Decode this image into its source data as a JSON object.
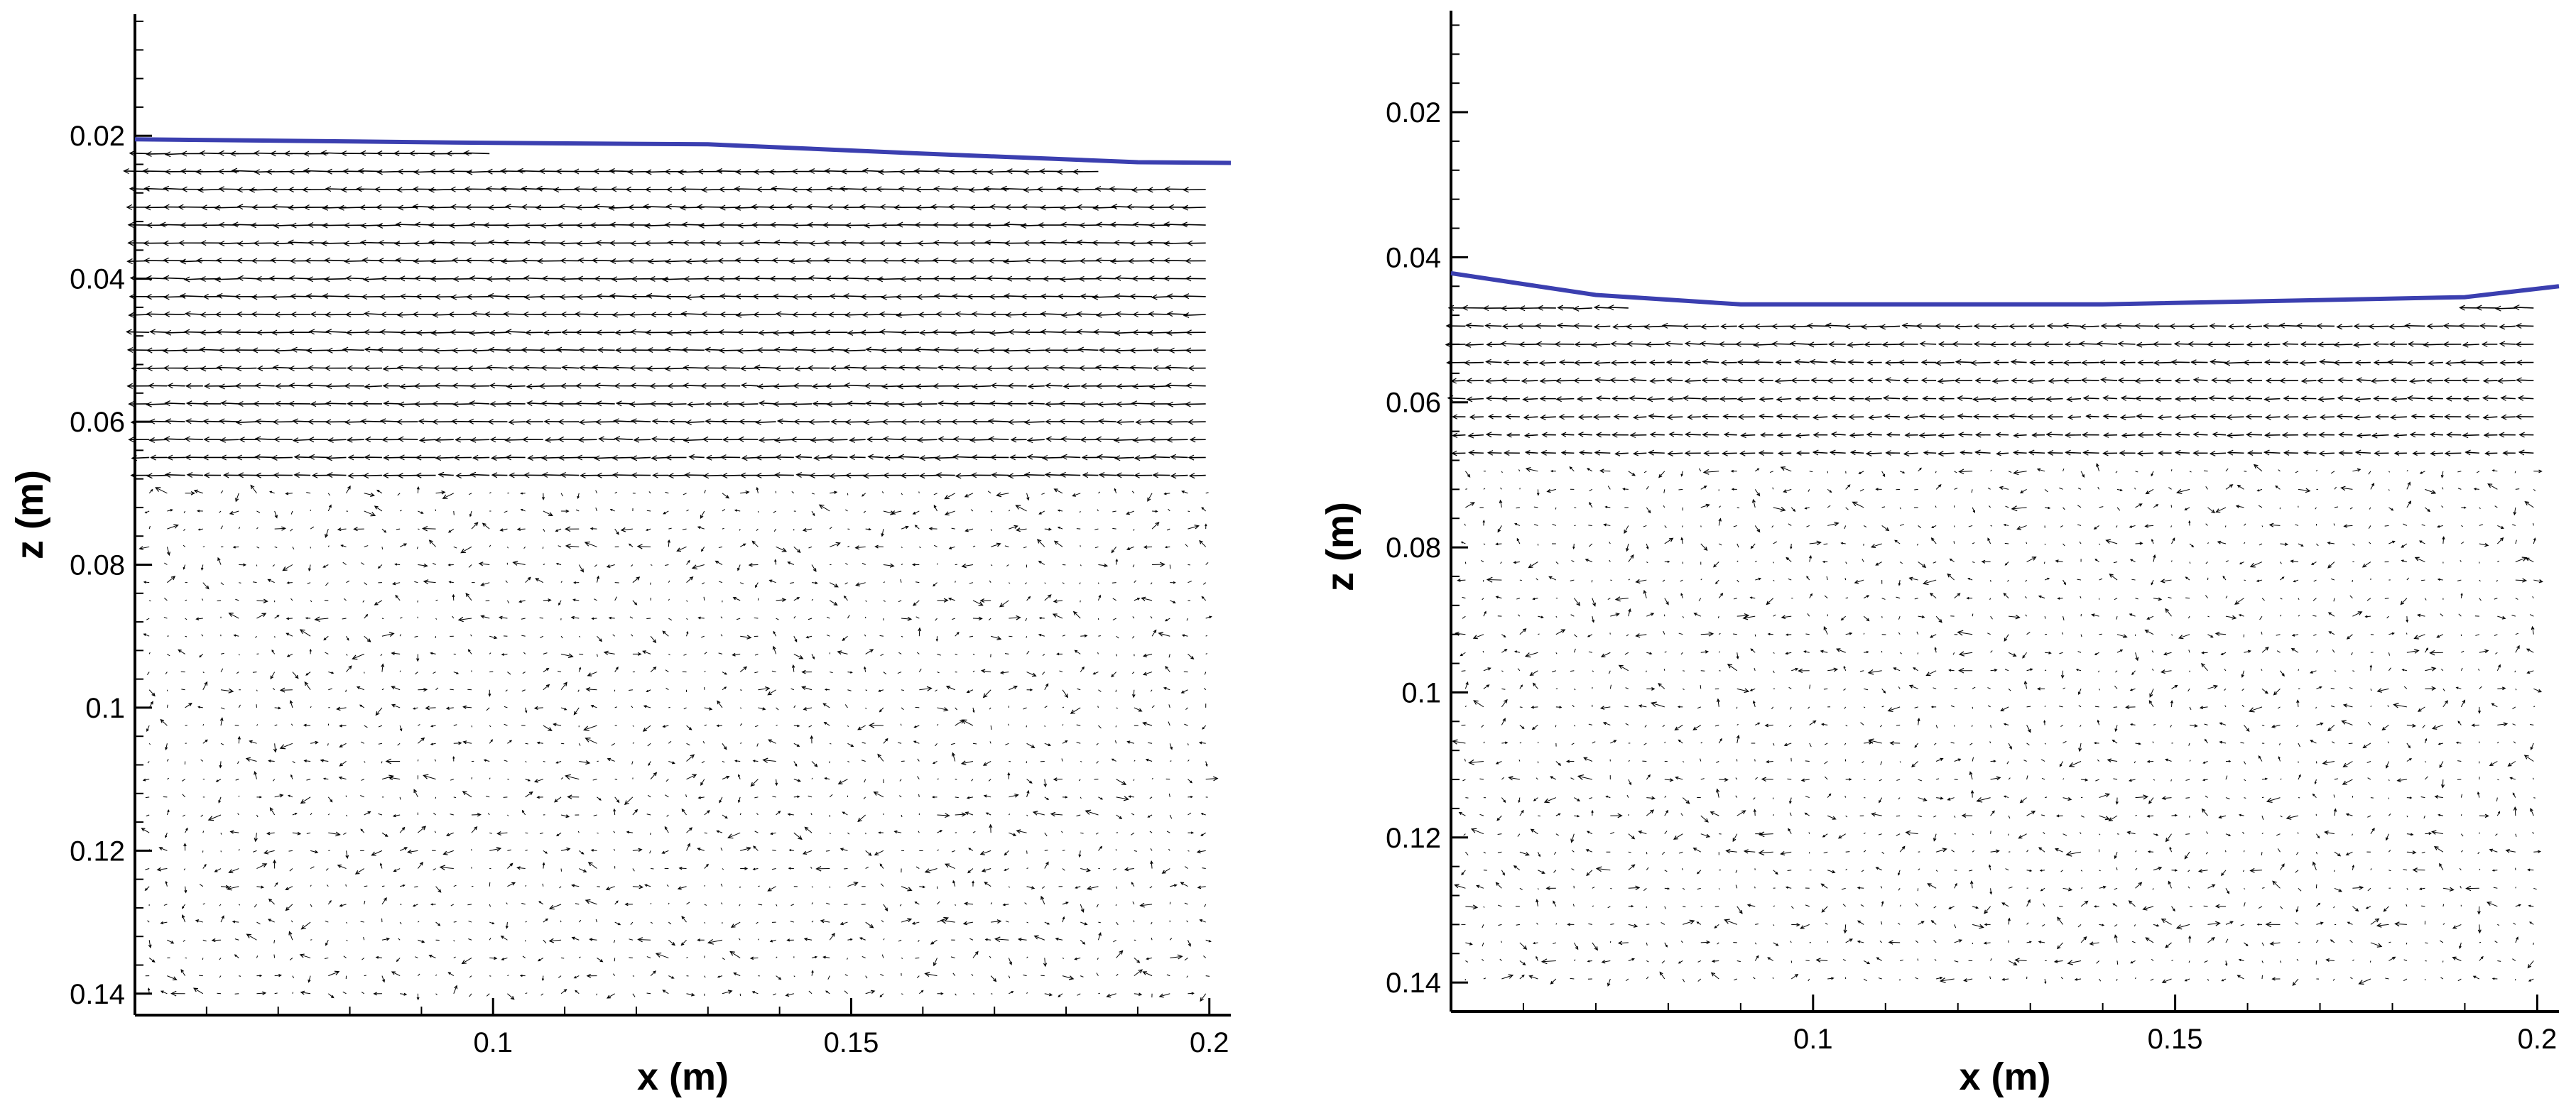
{
  "chart_data": [
    {
      "type": "vector-field",
      "title": "",
      "xlabel": "x (m)",
      "ylabel": "z (m)",
      "xlim": [
        0.05,
        0.203
      ],
      "ylim": [
        0.003,
        0.143
      ],
      "y_inverted": true,
      "x_ticks": [
        "0.1",
        "0.15",
        "0.2"
      ],
      "x_tick_values": [
        0.1,
        0.15,
        0.2
      ],
      "y_ticks": [
        "0.02",
        "0.04",
        "0.06",
        "0.08",
        "0.1",
        "0.12",
        "0.14"
      ],
      "y_tick_values": [
        0.02,
        0.04,
        0.06,
        0.08,
        0.1,
        0.12,
        0.14
      ],
      "grid": false,
      "free_surface": {
        "color": "#3b3fb0",
        "x": [
          0.05,
          0.1,
          0.13,
          0.16,
          0.19,
          0.203
        ],
        "z": [
          0.0205,
          0.021,
          0.0212,
          0.0225,
          0.0237,
          0.0238
        ]
      },
      "vectors": {
        "x_range": [
          0.052,
          0.2
        ],
        "z_range": [
          0.0225,
          0.1415
        ],
        "grid_step": [
          0.0025,
          0.0025
        ],
        "upper_jet": {
          "z_range": [
            0.023,
            0.07
          ],
          "u_max": 1.0
        },
        "lower_region": "recirculating, weak velocities, vortex near x=0.2 z=0.11"
      }
    },
    {
      "type": "vector-field",
      "title": "",
      "xlabel": "x (m)",
      "ylabel": "z (m)",
      "xlim": [
        0.05,
        0.203
      ],
      "ylim": [
        0.006,
        0.144
      ],
      "y_inverted": true,
      "x_ticks": [
        "0.1",
        "0.15",
        "0.2"
      ],
      "x_tick_values": [
        0.1,
        0.15,
        0.2
      ],
      "y_ticks": [
        "0.02",
        "0.04",
        "0.06",
        "0.08",
        "0.1",
        "0.12",
        "0.14"
      ],
      "y_tick_values": [
        0.02,
        0.04,
        0.06,
        0.08,
        0.1,
        0.12,
        0.14
      ],
      "grid": false,
      "free_surface": {
        "color": "#3b3fb0",
        "x": [
          0.05,
          0.07,
          0.09,
          0.14,
          0.19,
          0.203
        ],
        "z": [
          0.0422,
          0.0452,
          0.0465,
          0.0465,
          0.0455,
          0.044
        ]
      },
      "vectors": {
        "x_range": [
          0.052,
          0.2
        ],
        "z_range": [
          0.047,
          0.1415
        ],
        "grid_step": [
          0.0025,
          0.0025
        ],
        "upper_jet": {
          "z_range": [
            0.047,
            0.068
          ],
          "u_max": 0.8
        },
        "lower_region": "weak recirculating velocities, vortex near x=0.19 z=0.085"
      }
    }
  ]
}
